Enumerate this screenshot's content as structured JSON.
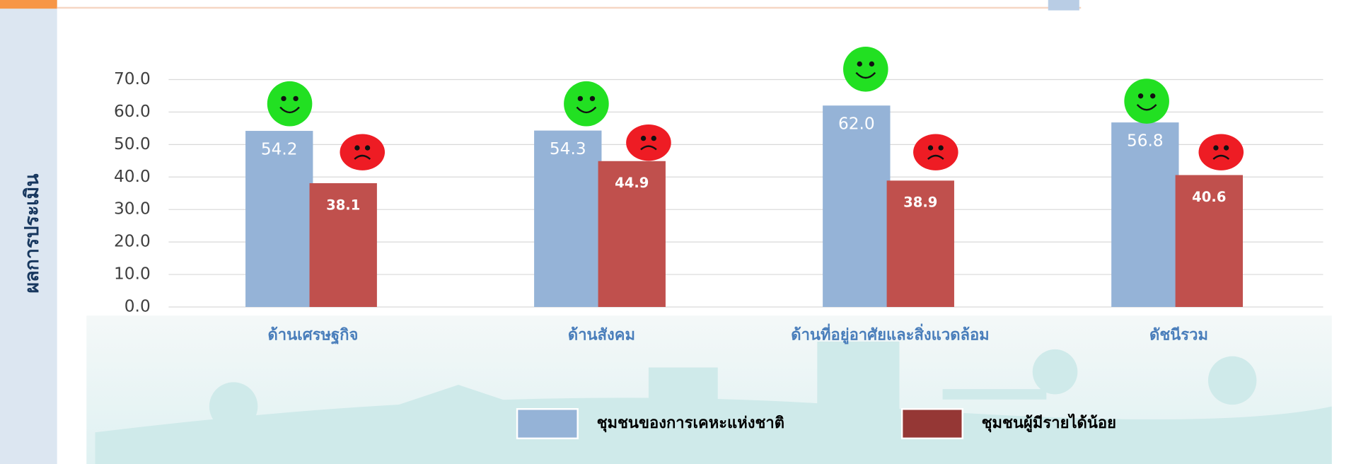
{
  "chart_data": {
    "type": "bar",
    "y_label": "ผลการประเมิน",
    "categories": [
      "ด้านเศรษฐกิจ",
      "ด้านสังคม",
      "ด้านที่อยู่อาศัยและสิ่งแวดล้อม",
      "ดัชนีรวม"
    ],
    "series": [
      {
        "name": "ชุมชนของการเคหะแห่งชาติ",
        "color": "#95b3d7",
        "values": [
          54.2,
          54.3,
          62.0,
          56.8
        ],
        "value_labels": [
          "54.2",
          "54.3",
          "62.0",
          "56.8"
        ]
      },
      {
        "name": "ชุมชนผู้มีรายได้น้อย",
        "color": "#c0504d",
        "legend_color": "#953735",
        "values": [
          38.1,
          44.9,
          38.9,
          40.6
        ],
        "value_labels": [
          "38.1",
          "44.9",
          "38.9",
          "40.6"
        ]
      }
    ],
    "ylim": [
      0,
      70
    ],
    "yticks": [
      {
        "value": 0,
        "label": "0.0"
      },
      {
        "value": 10,
        "label": "10.0"
      },
      {
        "value": 20,
        "label": "20.0"
      },
      {
        "value": 30,
        "label": "30.0"
      },
      {
        "value": 40,
        "label": "40.0"
      },
      {
        "value": 50,
        "label": "50.0"
      },
      {
        "value": 60,
        "label": "60.0"
      },
      {
        "value": 70,
        "label": "70.0"
      }
    ],
    "grid": true,
    "legend": "bottom"
  }
}
